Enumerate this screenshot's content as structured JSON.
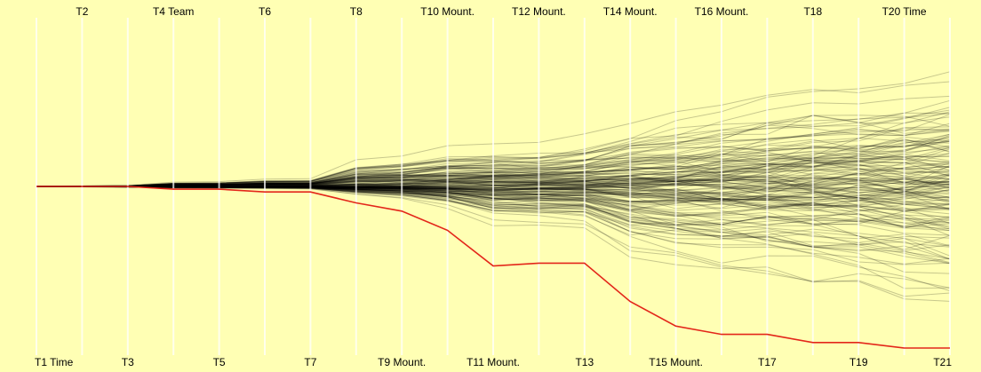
{
  "chart_data": {
    "type": "line",
    "title": "",
    "xlabel": "",
    "ylabel": "",
    "categories": [
      "T1 Time",
      "T2",
      "T3",
      "T4 Team",
      "T5",
      "T6",
      "T7",
      "T8",
      "T9 Mount.",
      "T10 Mount.",
      "T11 Mount.",
      "T12 Mount.",
      "T13",
      "T14 Mount.",
      "T15 Mount.",
      "T16 Mount.",
      "T17",
      "T18",
      "T19",
      "T20 Time",
      "T21"
    ],
    "label_positions": [
      "bottom",
      "top",
      "bottom",
      "top",
      "bottom",
      "top",
      "bottom",
      "top",
      "bottom",
      "top",
      "bottom",
      "top",
      "bottom",
      "top",
      "bottom",
      "top",
      "bottom",
      "top",
      "bottom",
      "top",
      "bottom"
    ],
    "grid": true,
    "series_count": 160,
    "background_color": "#ffffb4",
    "axis_color": "#ffffff",
    "line_color": "#000000",
    "highlight_color": "#e3261a",
    "series": [
      {
        "values": [
          0,
          0,
          0,
          1,
          1,
          2,
          2,
          6,
          9,
          16,
          29,
          28,
          28,
          42,
          51,
          54,
          54,
          57,
          57,
          59,
          59
        ]
      }
    ]
  }
}
